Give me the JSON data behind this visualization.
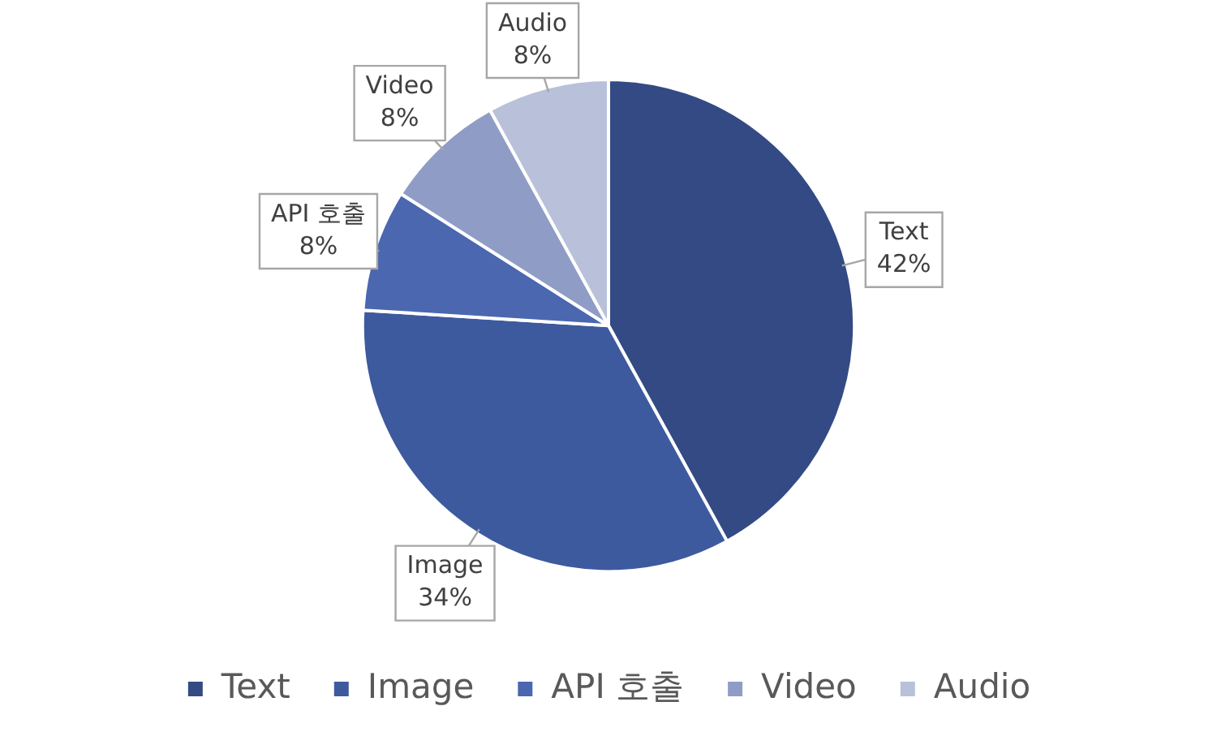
{
  "chart_data": {
    "type": "pie",
    "categories": [
      "Text",
      "Image",
      "API 호출",
      "Video",
      "Audio"
    ],
    "values": [
      42,
      34,
      8,
      8,
      8
    ],
    "colors": [
      "#344a84",
      "#3e5a9e",
      "#4a67b0",
      "#8f9dc6",
      "#b9c0d9"
    ],
    "value_labels": [
      "42%",
      "34%",
      "8%",
      "8%",
      "8%"
    ],
    "legend": "bottom"
  }
}
